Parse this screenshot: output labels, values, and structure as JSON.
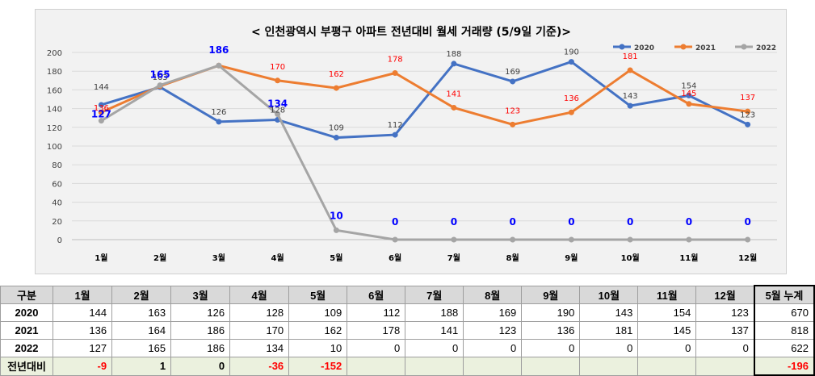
{
  "chart_data": {
    "type": "line",
    "title": "< 인천광역시 부평구  아파트 전년대비 월세 거래량 (5/9일 기준)>",
    "categories": [
      "1월",
      "2월",
      "3월",
      "4월",
      "5월",
      "6월",
      "7월",
      "8월",
      "9월",
      "10월",
      "11월",
      "12월"
    ],
    "ylim": [
      0,
      200
    ],
    "yticks": [
      0,
      20,
      40,
      60,
      80,
      100,
      120,
      140,
      160,
      180,
      200
    ],
    "grid": true,
    "legend_position": "top-right",
    "series": [
      {
        "name": "2020",
        "color": "#4472c4",
        "values": [
          144,
          163,
          126,
          128,
          109,
          112,
          188,
          169,
          190,
          143,
          154,
          123
        ],
        "labels": [
          "144",
          "163",
          "126",
          "128",
          "109",
          "112",
          "188",
          "169",
          "190",
          "143",
          "154",
          "123"
        ]
      },
      {
        "name": "2021",
        "color": "#ed7d31",
        "values": [
          136,
          164,
          186,
          170,
          162,
          178,
          141,
          123,
          136,
          181,
          145,
          137
        ],
        "labels": [
          "136",
          "",
          "",
          "170",
          "162",
          "178",
          "141",
          "123",
          "136",
          "181",
          "145",
          "137"
        ]
      },
      {
        "name": "2022",
        "color": "#a5a5a5",
        "values": [
          127,
          165,
          186,
          134,
          10,
          0,
          0,
          0,
          0,
          0,
          0,
          0
        ],
        "labels": [
          "127",
          "165",
          "186",
          "134",
          "10",
          "0",
          "0",
          "0",
          "0",
          "0",
          "0",
          "0"
        ]
      }
    ]
  },
  "table": {
    "header": [
      "구분",
      "1월",
      "2월",
      "3월",
      "4월",
      "5월",
      "6월",
      "7월",
      "8월",
      "9월",
      "10월",
      "11월",
      "12월",
      "5월 누계"
    ],
    "rows": [
      {
        "label": "2020",
        "cells": [
          "144",
          "163",
          "126",
          "128",
          "109",
          "112",
          "188",
          "169",
          "190",
          "143",
          "154",
          "123",
          "670"
        ]
      },
      {
        "label": "2021",
        "cells": [
          "136",
          "164",
          "186",
          "170",
          "162",
          "178",
          "141",
          "123",
          "136",
          "181",
          "145",
          "137",
          "818"
        ]
      },
      {
        "label": "2022",
        "cells": [
          "127",
          "165",
          "186",
          "134",
          "10",
          "0",
          "0",
          "0",
          "0",
          "0",
          "0",
          "0",
          "622"
        ]
      },
      {
        "label": "전년대비",
        "cells": [
          "-9",
          "1",
          "0",
          "-36",
          "-152",
          "",
          "",
          "",
          "",
          "",
          "",
          "",
          "-196"
        ]
      }
    ]
  }
}
